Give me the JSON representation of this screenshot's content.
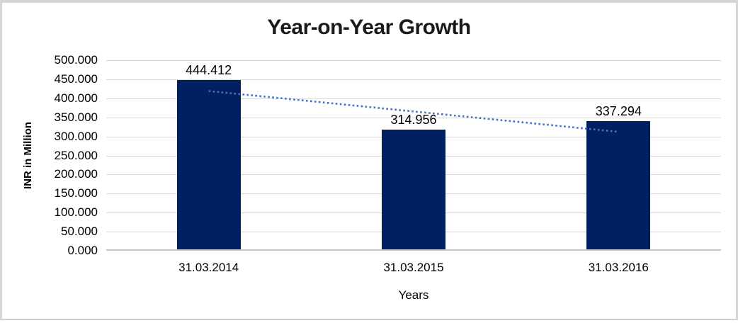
{
  "chart_data": {
    "type": "bar",
    "title": "Year-on-Year Growth",
    "xlabel": "Years",
    "ylabel": "INR in Million",
    "categories": [
      "31.03.2014",
      "31.03.2015",
      "31.03.2016"
    ],
    "values": [
      444.412,
      314.956,
      337.294
    ],
    "value_labels": [
      "444.412",
      "314.956",
      "337.294"
    ],
    "ylim": [
      0,
      500
    ],
    "ytick_step": 50,
    "ytick_labels": [
      "500.000",
      "450.000",
      "400.000",
      "350.000",
      "300.000",
      "250.000",
      "200.000",
      "150.000",
      "100.000",
      "50.000",
      "0.000"
    ],
    "grid": true,
    "legend": "none",
    "trendline": {
      "type": "linear",
      "style": "dotted",
      "fit_start_value": 419.113,
      "fit_end_value": 311.995
    },
    "colors": {
      "bar": "#002060",
      "trendline": "#4472c4",
      "gridline": "#d9d9d9",
      "axis_line": "#c6c6c6",
      "text": "#000000",
      "frame_border": "#d5d5d5"
    }
  }
}
